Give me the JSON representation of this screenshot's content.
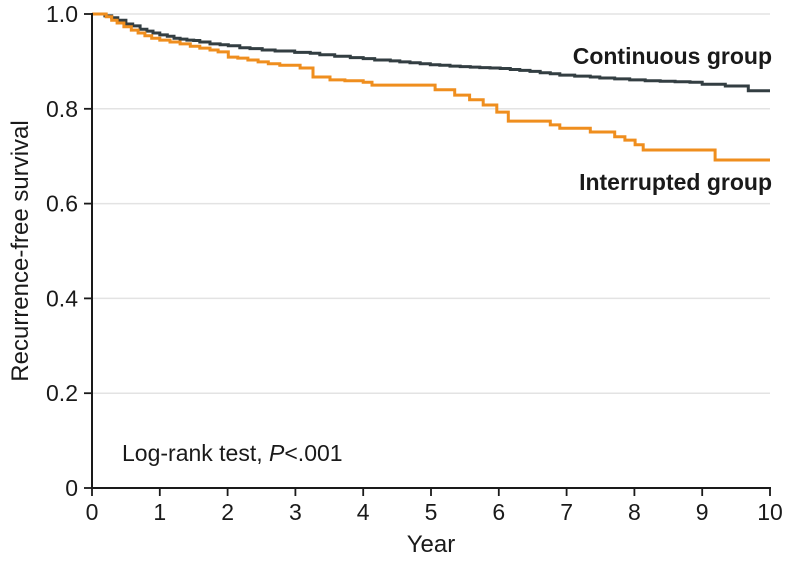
{
  "figure": {
    "ylabel": "Recurrence-free survival",
    "xlabel": "Year",
    "annotation": {
      "prefix": "Log-rank test, ",
      "stat": "P",
      "value": "<.001"
    }
  },
  "colors": {
    "continuous_curve": "#333e42",
    "interrupted_curve": "#ef8e1e",
    "axis": "#1a1a1a",
    "gridline": "#e3e3e3",
    "text": "#1a1a1a",
    "background": "#ffffff"
  },
  "chart_data": {
    "type": "line",
    "subtype": "kaplan-meier-step",
    "title": "",
    "xlabel": "Year",
    "ylabel": "Recurrence-free survival",
    "xlim": [
      0,
      10
    ],
    "ylim": [
      0,
      1.0
    ],
    "xticks": [
      0,
      1,
      2,
      3,
      4,
      5,
      6,
      7,
      8,
      9,
      10
    ],
    "xtick_labels": [
      "0",
      "1",
      "2",
      "3",
      "4",
      "5",
      "6",
      "7",
      "8",
      "9",
      "10"
    ],
    "yticks": [
      0,
      0.2,
      0.4,
      0.6,
      0.8,
      1.0
    ],
    "ytick_labels": [
      "0",
      "0.2",
      "0.4",
      "0.6",
      "0.8",
      "1.0"
    ],
    "grid": "horizontal",
    "legend_position": "inline-right",
    "annotation_text": "Log-rank test, P<.001",
    "series": [
      {
        "name": "Continuous group",
        "color": "#333e42",
        "final_value": 0.84,
        "points": [
          [
            0,
            1.0
          ],
          [
            0.12,
            1.0
          ],
          [
            0.19,
            0.996
          ],
          [
            0.29,
            0.992
          ],
          [
            0.38,
            0.987
          ],
          [
            0.5,
            0.979
          ],
          [
            0.6,
            0.975
          ],
          [
            0.71,
            0.968
          ],
          [
            0.81,
            0.964
          ],
          [
            0.9,
            0.96
          ],
          [
            1.0,
            0.956
          ],
          [
            1.11,
            0.953
          ],
          [
            1.21,
            0.949
          ],
          [
            1.3,
            0.947
          ],
          [
            1.4,
            0.945
          ],
          [
            1.5,
            0.944
          ],
          [
            1.59,
            0.941
          ],
          [
            1.74,
            0.937
          ],
          [
            1.89,
            0.935
          ],
          [
            2.01,
            0.933
          ],
          [
            2.18,
            0.929
          ],
          [
            2.33,
            0.927
          ],
          [
            2.51,
            0.924
          ],
          [
            2.7,
            0.922
          ],
          [
            2.99,
            0.919
          ],
          [
            3.22,
            0.917
          ],
          [
            3.36,
            0.914
          ],
          [
            3.58,
            0.911
          ],
          [
            3.81,
            0.908
          ],
          [
            4.0,
            0.906
          ],
          [
            4.17,
            0.903
          ],
          [
            4.4,
            0.901
          ],
          [
            4.54,
            0.899
          ],
          [
            4.69,
            0.897
          ],
          [
            4.84,
            0.895
          ],
          [
            4.99,
            0.893
          ],
          [
            5.13,
            0.892
          ],
          [
            5.28,
            0.89
          ],
          [
            5.43,
            0.889
          ],
          [
            5.58,
            0.888
          ],
          [
            5.72,
            0.887
          ],
          [
            5.87,
            0.886
          ],
          [
            6.02,
            0.885
          ],
          [
            6.17,
            0.883
          ],
          [
            6.31,
            0.881
          ],
          [
            6.46,
            0.879
          ],
          [
            6.61,
            0.876
          ],
          [
            6.76,
            0.874
          ],
          [
            6.9,
            0.871
          ],
          [
            7.12,
            0.869
          ],
          [
            7.35,
            0.867
          ],
          [
            7.49,
            0.865
          ],
          [
            7.71,
            0.863
          ],
          [
            7.93,
            0.861
          ],
          [
            8.16,
            0.859
          ],
          [
            8.38,
            0.858
          ],
          [
            8.6,
            0.857
          ],
          [
            8.82,
            0.856
          ],
          [
            9.0,
            0.852
          ],
          [
            9.34,
            0.848
          ],
          [
            9.68,
            0.838
          ],
          [
            10,
            0.838
          ]
        ]
      },
      {
        "name": "Interrupted group",
        "color": "#ef8e1e",
        "final_value": 0.69,
        "points": [
          [
            0,
            1.0
          ],
          [
            0.16,
            1.0
          ],
          [
            0.21,
            0.994
          ],
          [
            0.29,
            0.987
          ],
          [
            0.37,
            0.981
          ],
          [
            0.47,
            0.973
          ],
          [
            0.58,
            0.966
          ],
          [
            0.68,
            0.96
          ],
          [
            0.78,
            0.954
          ],
          [
            0.88,
            0.949
          ],
          [
            1.0,
            0.945
          ],
          [
            1.15,
            0.941
          ],
          [
            1.3,
            0.937
          ],
          [
            1.45,
            0.932
          ],
          [
            1.59,
            0.928
          ],
          [
            1.74,
            0.924
          ],
          [
            1.86,
            0.92
          ],
          [
            2.01,
            0.909
          ],
          [
            2.15,
            0.907
          ],
          [
            2.3,
            0.903
          ],
          [
            2.45,
            0.899
          ],
          [
            2.6,
            0.895
          ],
          [
            2.77,
            0.892
          ],
          [
            3.07,
            0.886
          ],
          [
            3.26,
            0.867
          ],
          [
            3.51,
            0.861
          ],
          [
            3.73,
            0.859
          ],
          [
            4.0,
            0.856
          ],
          [
            4.13,
            0.85
          ],
          [
            5.06,
            0.84
          ],
          [
            5.35,
            0.829
          ],
          [
            5.57,
            0.819
          ],
          [
            5.77,
            0.808
          ],
          [
            5.97,
            0.793
          ],
          [
            6.14,
            0.774
          ],
          [
            6.76,
            0.766
          ],
          [
            6.9,
            0.759
          ],
          [
            7.35,
            0.751
          ],
          [
            7.71,
            0.741
          ],
          [
            7.86,
            0.734
          ],
          [
            8.01,
            0.724
          ],
          [
            8.13,
            0.713
          ],
          [
            9.19,
            0.692
          ],
          [
            10,
            0.692
          ]
        ]
      }
    ]
  }
}
